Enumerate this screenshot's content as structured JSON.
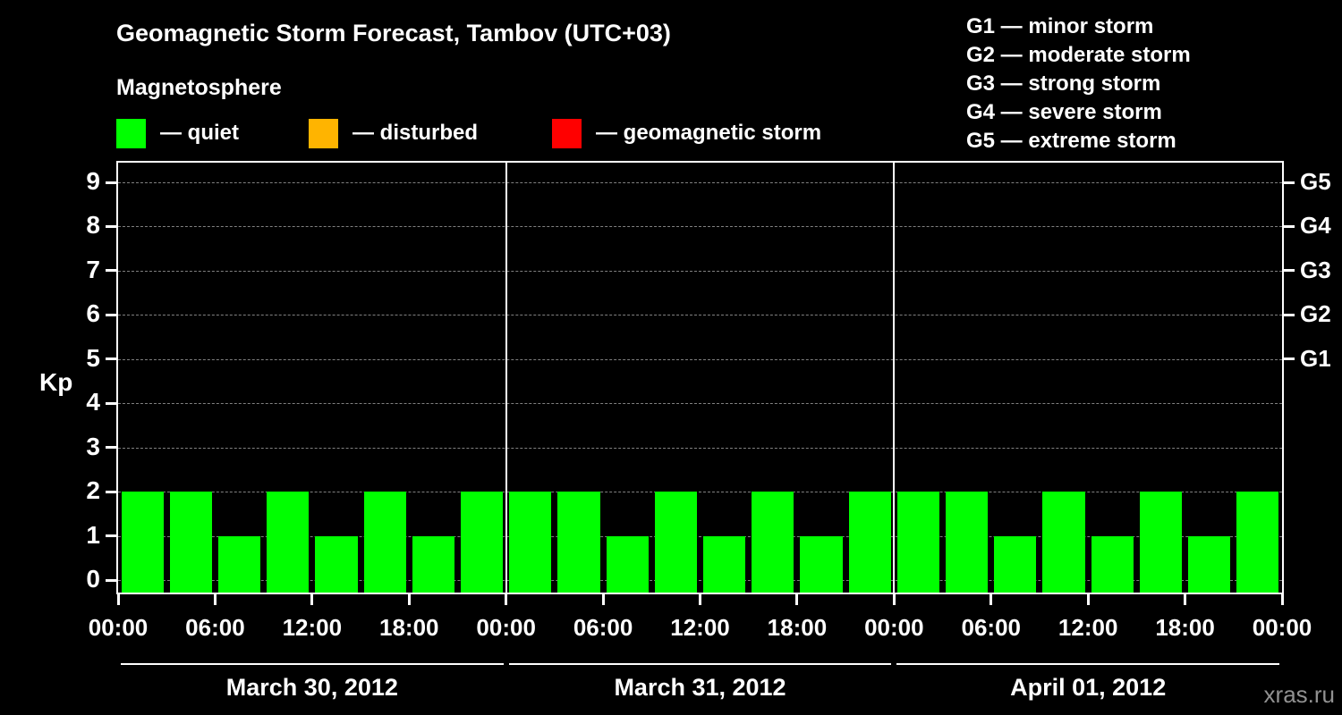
{
  "title": "Geomagnetic Storm Forecast, Tambov (UTC+03)",
  "section_label": "Magnetosphere",
  "ylabel": "Kp",
  "legend": [
    {
      "label": "— quiet",
      "color": "#00ff00"
    },
    {
      "label": "— disturbed",
      "color": "#ffb400"
    },
    {
      "label": "— geomagnetic storm",
      "color": "#ff0000"
    }
  ],
  "g_scale_legend": [
    "G1 — minor storm",
    "G2 — moderate storm",
    "G3 — strong storm",
    "G4 — severe storm",
    "G5 — extreme storm"
  ],
  "watermark": "xras.ru",
  "colors": {
    "background": "#000000",
    "text": "#ffffff",
    "quiet": "#00ff00",
    "disturbed": "#ffb400",
    "storm": "#ff0000",
    "gridline": "#808080",
    "watermark": "#919191"
  },
  "chart_data": {
    "type": "bar",
    "title": "Geomagnetic Storm Forecast, Tambov (UTC+03)",
    "ylabel": "Kp",
    "ylim": [
      0,
      9
    ],
    "y_ticks": [
      0,
      1,
      2,
      3,
      4,
      5,
      6,
      7,
      8,
      9
    ],
    "grid": true,
    "hours_per_bar": 3,
    "bar_color": "#00ff00",
    "x_tick_labels": [
      "00:00",
      "06:00",
      "12:00",
      "18:00",
      "00:00",
      "06:00",
      "12:00",
      "18:00",
      "00:00",
      "06:00",
      "12:00",
      "18:00",
      "00:00"
    ],
    "right_axis": [
      {
        "label": "G1",
        "value": 5
      },
      {
        "label": "G2",
        "value": 6
      },
      {
        "label": "G3",
        "value": 7
      },
      {
        "label": "G4",
        "value": 8
      },
      {
        "label": "G5",
        "value": 9
      }
    ],
    "days": [
      {
        "label": "March 30, 2012",
        "values": [
          2,
          2,
          1,
          2,
          1,
          2,
          1,
          2
        ]
      },
      {
        "label": "March 31, 2012",
        "values": [
          2,
          2,
          1,
          2,
          1,
          2,
          1,
          2
        ]
      },
      {
        "label": "April 01, 2012",
        "values": [
          2,
          2,
          1,
          2,
          1,
          2,
          1,
          2
        ]
      }
    ]
  }
}
